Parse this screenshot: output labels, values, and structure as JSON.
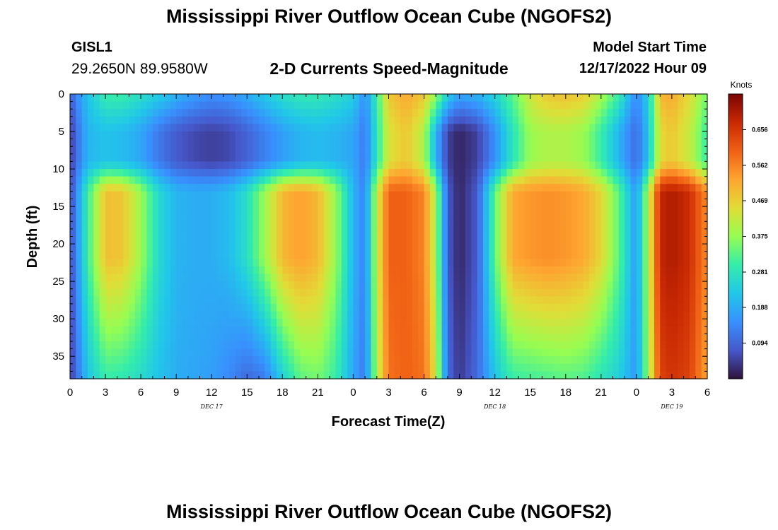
{
  "header": {
    "title": "Mississippi River Outflow Ocean Cube (NGOFS2)",
    "station": "GISL1",
    "location": "29.2650N  89.9580W",
    "subtitle": "2-D Currents Speed-Magnitude",
    "model_start_label": "Model Start Time",
    "model_start_value": "12/17/2022 Hour 09"
  },
  "footer": {
    "title": "Mississippi River Outflow Ocean Cube (NGOFS2)"
  },
  "chart_data": {
    "type": "heatmap",
    "title": "2-D Currents Speed-Magnitude",
    "xlabel": "Forecast Time(Z)",
    "ylabel": "Depth (ft)",
    "x_range_hours": [
      0,
      54
    ],
    "ylim": [
      38,
      0
    ],
    "x_ticks": [
      "0",
      "3",
      "6",
      "9",
      "12",
      "15",
      "18",
      "21",
      "0",
      "3",
      "6",
      "9",
      "12",
      "15",
      "18",
      "21",
      "0",
      "3",
      "6"
    ],
    "y_ticks": [
      "0",
      "5",
      "10",
      "15",
      "20",
      "25",
      "30",
      "35"
    ],
    "date_labels": [
      {
        "text": "DEC 17",
        "hour": 12
      },
      {
        "text": "DEC 18",
        "hour": 36
      },
      {
        "text": "DEC 19",
        "hour": 51
      }
    ],
    "colorbar": {
      "unit": "Knots",
      "min": 0.0,
      "max": 0.75,
      "tick_values": [
        0.094,
        0.188,
        0.281,
        0.375,
        0.469,
        0.562,
        0.656
      ],
      "tick_labels": [
        "0.094",
        "0.188",
        "0.281",
        "0.375",
        "0.469",
        "0.562",
        "0.656"
      ]
    },
    "grid": false,
    "depth_profile": {
      "depths_ft": [
        0,
        2.5,
        5,
        7.5,
        10,
        12,
        15,
        20,
        25,
        30,
        35,
        38
      ],
      "note_surface_is_row0": true
    },
    "time_series": {
      "hours": [
        0,
        0.5,
        1.5,
        3,
        4.5,
        6,
        7.5,
        9,
        10.5,
        12,
        13.5,
        15,
        16.5,
        18,
        19.5,
        21,
        22.5,
        24,
        25,
        26,
        27,
        28.5,
        30,
        31,
        32,
        33,
        34.5,
        36,
        37.5,
        39,
        40.5,
        42,
        43.5,
        45,
        46.5,
        48,
        49,
        50,
        51,
        52.5,
        54
      ],
      "surface_speed": [
        0.08,
        0.14,
        0.22,
        0.3,
        0.3,
        0.27,
        0.24,
        0.2,
        0.17,
        0.15,
        0.16,
        0.19,
        0.23,
        0.27,
        0.29,
        0.29,
        0.27,
        0.24,
        0.15,
        0.3,
        0.48,
        0.52,
        0.48,
        0.38,
        0.24,
        0.18,
        0.2,
        0.25,
        0.33,
        0.43,
        0.48,
        0.49,
        0.47,
        0.4,
        0.3,
        0.14,
        0.24,
        0.5,
        0.52,
        0.45,
        0.35
      ],
      "mid_speed": [
        0.04,
        0.1,
        0.2,
        0.22,
        0.21,
        0.18,
        0.12,
        0.08,
        0.06,
        0.05,
        0.06,
        0.09,
        0.13,
        0.17,
        0.2,
        0.21,
        0.2,
        0.18,
        0.12,
        0.28,
        0.44,
        0.48,
        0.4,
        0.2,
        0.05,
        0.02,
        0.05,
        0.15,
        0.28,
        0.38,
        0.4,
        0.4,
        0.38,
        0.3,
        0.2,
        0.1,
        0.22,
        0.45,
        0.48,
        0.42,
        0.3
      ],
      "deep_speed": [
        0.05,
        0.14,
        0.3,
        0.49,
        0.48,
        0.38,
        0.26,
        0.2,
        0.19,
        0.19,
        0.21,
        0.27,
        0.38,
        0.5,
        0.53,
        0.5,
        0.38,
        0.2,
        0.13,
        0.42,
        0.6,
        0.6,
        0.56,
        0.4,
        0.08,
        0.02,
        0.08,
        0.33,
        0.52,
        0.54,
        0.55,
        0.54,
        0.52,
        0.46,
        0.33,
        0.16,
        0.4,
        0.68,
        0.7,
        0.67,
        0.55
      ],
      "bottom_speed": [
        0.04,
        0.1,
        0.22,
        0.3,
        0.29,
        0.26,
        0.22,
        0.19,
        0.18,
        0.17,
        0.14,
        0.1,
        0.12,
        0.24,
        0.33,
        0.35,
        0.3,
        0.18,
        0.12,
        0.4,
        0.58,
        0.6,
        0.58,
        0.44,
        0.1,
        0.04,
        0.1,
        0.22,
        0.3,
        0.31,
        0.32,
        0.33,
        0.32,
        0.28,
        0.24,
        0.16,
        0.38,
        0.64,
        0.66,
        0.64,
        0.52
      ]
    }
  }
}
